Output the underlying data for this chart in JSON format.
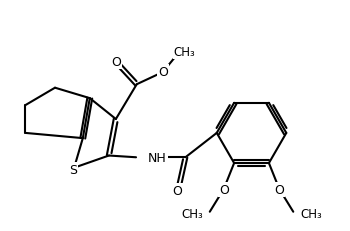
{
  "background_color": "#ffffff",
  "line_color": "#000000",
  "line_width": 1.5,
  "font_size": 9,
  "fig_width": 3.5,
  "fig_height": 2.32,
  "xlim": [
    0,
    10
  ],
  "ylim": [
    0,
    6.63
  ]
}
